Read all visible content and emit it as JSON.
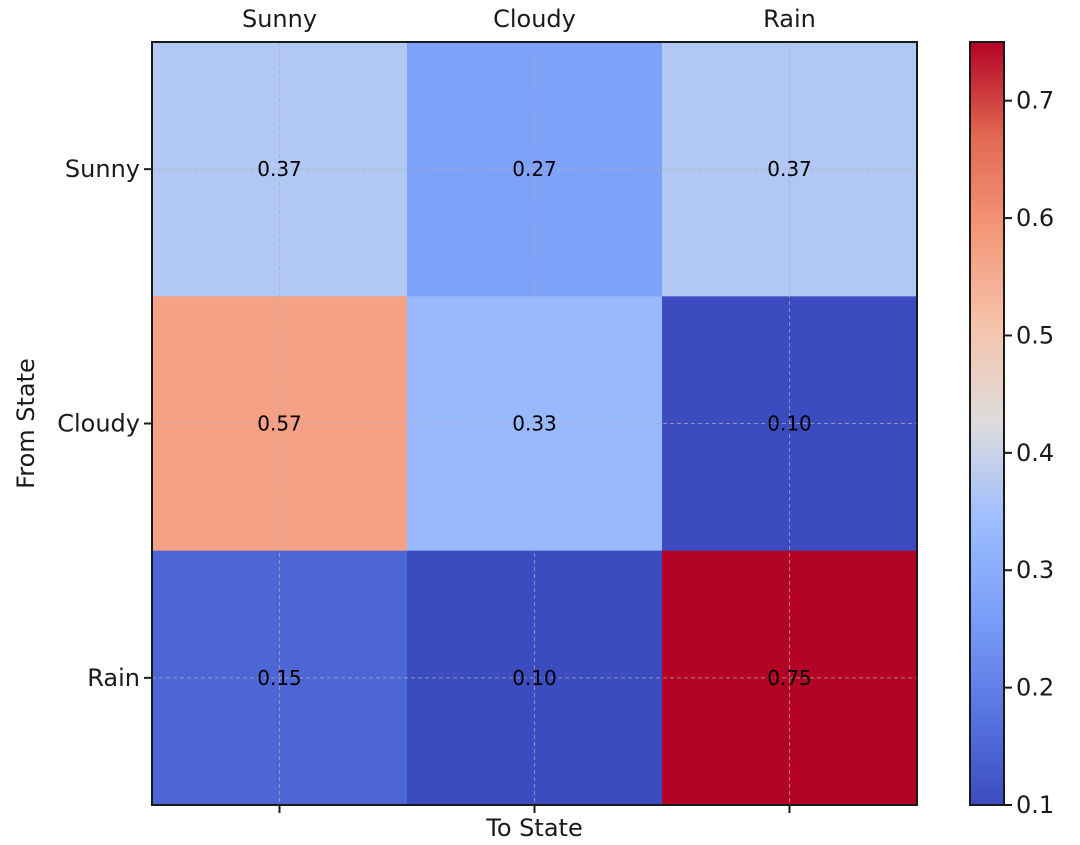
{
  "chart_data": {
    "type": "heatmap",
    "title": "",
    "xlabel": "To State",
    "ylabel": "From State",
    "x_categories": [
      "Sunny",
      "Cloudy",
      "Rain"
    ],
    "y_categories": [
      "Sunny",
      "Cloudy",
      "Rain"
    ],
    "values": [
      [
        0.37,
        0.27,
        0.37
      ],
      [
        0.57,
        0.33,
        0.1
      ],
      [
        0.15,
        0.1,
        0.75
      ]
    ],
    "cell_labels": [
      [
        "0.37",
        "0.27",
        "0.37"
      ],
      [
        "0.57",
        "0.33",
        "0.10"
      ],
      [
        "0.15",
        "0.10",
        "0.75"
      ]
    ],
    "colormap": "coolwarm",
    "vmin": 0.1,
    "vmax": 0.75,
    "colorbar": {
      "ticks": [
        0.1,
        0.2,
        0.3,
        0.4,
        0.5,
        0.6,
        0.7
      ],
      "tick_labels": [
        "0.1",
        "0.2",
        "0.3",
        "0.4",
        "0.5",
        "0.6",
        "0.7"
      ]
    },
    "grid": true,
    "x_ticks_position": "top"
  }
}
